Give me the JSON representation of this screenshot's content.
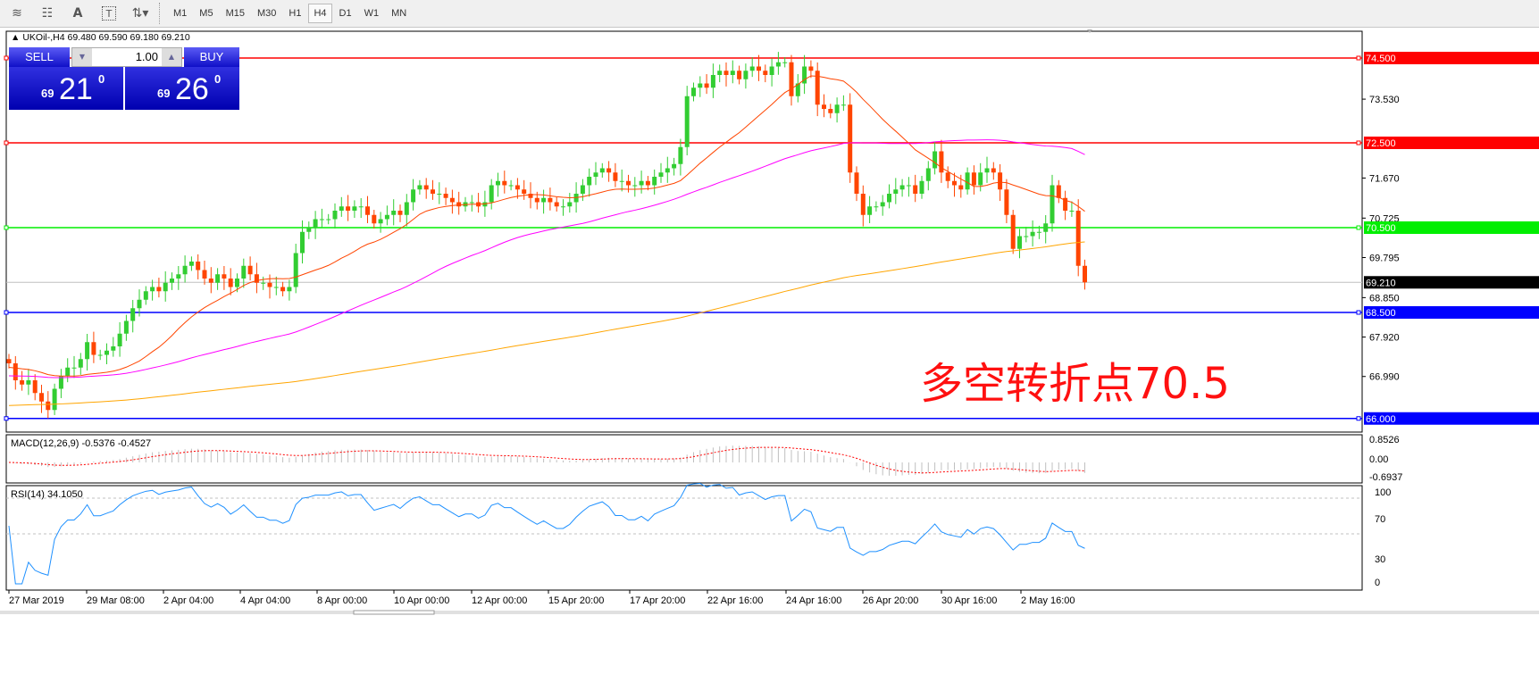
{
  "toolbar": {
    "icons": [
      "elliott-wave-icon",
      "fibonacci-icon",
      "text-icon",
      "text-label-icon",
      "arrows-icon"
    ],
    "text_icon": "A",
    "label_icon": "T",
    "timeframes": [
      "M1",
      "M5",
      "M15",
      "M30",
      "H1",
      "H4",
      "D1",
      "W1",
      "MN"
    ],
    "active": "H4"
  },
  "chart": {
    "symbol_line": "UKOil-,H4  69.480 69.590 69.180 69.210",
    "annotation": "多空转折点70.5"
  },
  "trade_panel": {
    "sell_label": "SELL",
    "buy_label": "BUY",
    "volume": "1.00",
    "sell_big": "69",
    "sell_main": "21",
    "sell_sup": "0",
    "buy_big": "69",
    "buy_main": "26",
    "buy_sup": "0"
  },
  "price_axis": [
    "73.530",
    "71.670",
    "70.725",
    "69.795",
    "68.850",
    "67.920",
    "66.990"
  ],
  "levels": [
    {
      "price": 74.5,
      "label": "74.500",
      "color": "#ff0000"
    },
    {
      "price": 72.5,
      "label": "72.500",
      "color": "#ff0000"
    },
    {
      "price": 70.5,
      "label": "70.500",
      "color": "#00ee00"
    },
    {
      "price": 68.5,
      "label": "68.500",
      "color": "#0000ff"
    },
    {
      "price": 66.0,
      "label": "66.000",
      "color": "#0000ff"
    }
  ],
  "current_price": {
    "price": 69.21,
    "label": "69.210"
  },
  "macd": {
    "label": "MACD(12,26,9) -0.5376 -0.4527",
    "axis": [
      "0.8526",
      "0.00",
      "-0.6937"
    ]
  },
  "rsi": {
    "label": "RSI(14) 34.1050",
    "axis": [
      "100",
      "70",
      "30",
      "0"
    ]
  },
  "time_axis": [
    "27 Mar 2019",
    "29 Mar 08:00",
    "2 Apr 04:00",
    "4 Apr 04:00",
    "8 Apr 00:00",
    "10 Apr 00:00",
    "12 Apr 00:00",
    "15 Apr 20:00",
    "17 Apr 20:00",
    "22 Apr 16:00",
    "24 Apr 16:00",
    "26 Apr 20:00",
    "30 Apr 16:00",
    "2 May 16:00"
  ],
  "chart_data": {
    "type": "candlestick",
    "closes": [
      67.3,
      66.9,
      66.8,
      66.9,
      66.6,
      66.4,
      66.2,
      66.7,
      67.0,
      67.2,
      67.2,
      67.4,
      67.8,
      67.5,
      67.5,
      67.6,
      67.7,
      68.0,
      68.3,
      68.6,
      68.8,
      69.0,
      69.1,
      69.0,
      69.2,
      69.3,
      69.4,
      69.6,
      69.7,
      69.5,
      69.3,
      69.2,
      69.4,
      69.3,
      69.1,
      69.3,
      69.6,
      69.4,
      69.2,
      69.2,
      69.1,
      69.1,
      69.0,
      69.1,
      69.9,
      70.4,
      70.5,
      70.7,
      70.7,
      70.7,
      70.9,
      71.0,
      70.9,
      71.0,
      71.0,
      70.8,
      70.6,
      70.7,
      70.8,
      70.9,
      70.8,
      71.1,
      71.4,
      71.5,
      71.4,
      71.3,
      71.3,
      71.2,
      71.1,
      71.0,
      71.1,
      71.1,
      71.0,
      71.1,
      71.5,
      71.6,
      71.5,
      71.5,
      71.4,
      71.3,
      71.2,
      71.1,
      71.2,
      71.1,
      71.0,
      71.0,
      71.1,
      71.3,
      71.5,
      71.7,
      71.8,
      71.9,
      71.8,
      71.6,
      71.6,
      71.5,
      71.5,
      71.6,
      71.5,
      71.7,
      71.8,
      71.9,
      72.0,
      72.4,
      73.6,
      73.8,
      73.9,
      73.8,
      74.1,
      74.2,
      74.1,
      74.2,
      74.0,
      74.2,
      74.3,
      74.2,
      74.1,
      74.3,
      74.4,
      74.4,
      73.6,
      73.9,
      74.3,
      74.2,
      73.4,
      73.3,
      73.2,
      73.4,
      73.4,
      71.8,
      71.3,
      70.8,
      71.0,
      71.0,
      71.1,
      71.3,
      71.4,
      71.5,
      71.5,
      71.3,
      71.6,
      71.9,
      72.3,
      71.8,
      71.6,
      71.5,
      71.4,
      71.8,
      71.5,
      71.8,
      71.9,
      71.8,
      71.4,
      70.8,
      70.0,
      70.3,
      70.3,
      70.4,
      70.4,
      70.6,
      71.5,
      71.2,
      70.9,
      70.9,
      69.6,
      69.21
    ],
    "colors": {
      "up": "#32cd32",
      "down": "#ff4500",
      "ma_fast": "#ff4500",
      "ma_mid": "#ff00ff",
      "ma_slow": "#ffa500",
      "rsi": "#1e90ff",
      "macd_signal": "#ff0000"
    }
  }
}
